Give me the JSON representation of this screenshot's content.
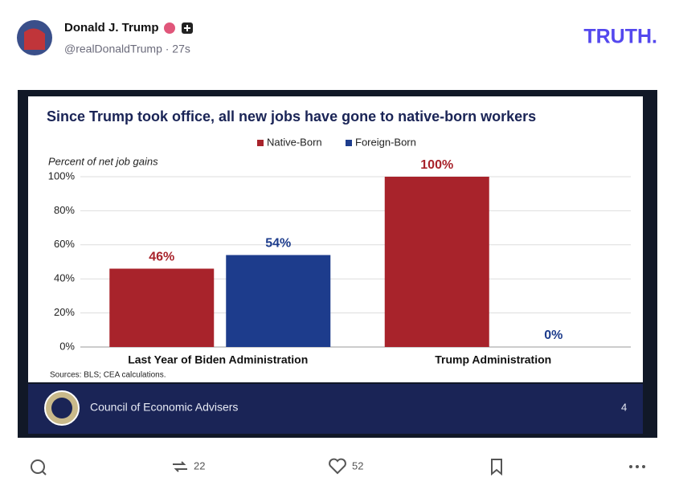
{
  "post": {
    "author": "Donald J. Trump",
    "handle_time": "@realDonaldTrump · 27s",
    "logo": "TRUTH."
  },
  "chart_data": {
    "type": "bar",
    "title": "Since Trump took office, all new jobs have gone to native-born workers",
    "y_label": "Percent of net job gains",
    "categories": [
      "Last Year of Biden Administration",
      "Trump Administration"
    ],
    "series": [
      {
        "name": "Native-Born",
        "color": "#a8232b",
        "values": [
          46,
          100
        ],
        "value_labels": [
          "46%",
          "100%"
        ]
      },
      {
        "name": "Foreign-Born",
        "color": "#1d3c8c",
        "values": [
          54,
          0
        ],
        "value_labels": [
          "54%",
          "0%"
        ]
      }
    ],
    "ylim": [
      0,
      100
    ],
    "yticks": [
      {
        "value": 0,
        "label": "0%"
      },
      {
        "value": 20,
        "label": "20%"
      },
      {
        "value": 40,
        "label": "40%"
      },
      {
        "value": 60,
        "label": "60%"
      },
      {
        "value": 80,
        "label": "80%"
      },
      {
        "value": 100,
        "label": "100%"
      }
    ],
    "grid": true,
    "note": "Sources: BLS; CEA calculations."
  },
  "slide": {
    "footer": "Council of Economic Advisers",
    "page": "4"
  },
  "actions": {
    "reposts": 22,
    "likes": 52
  }
}
